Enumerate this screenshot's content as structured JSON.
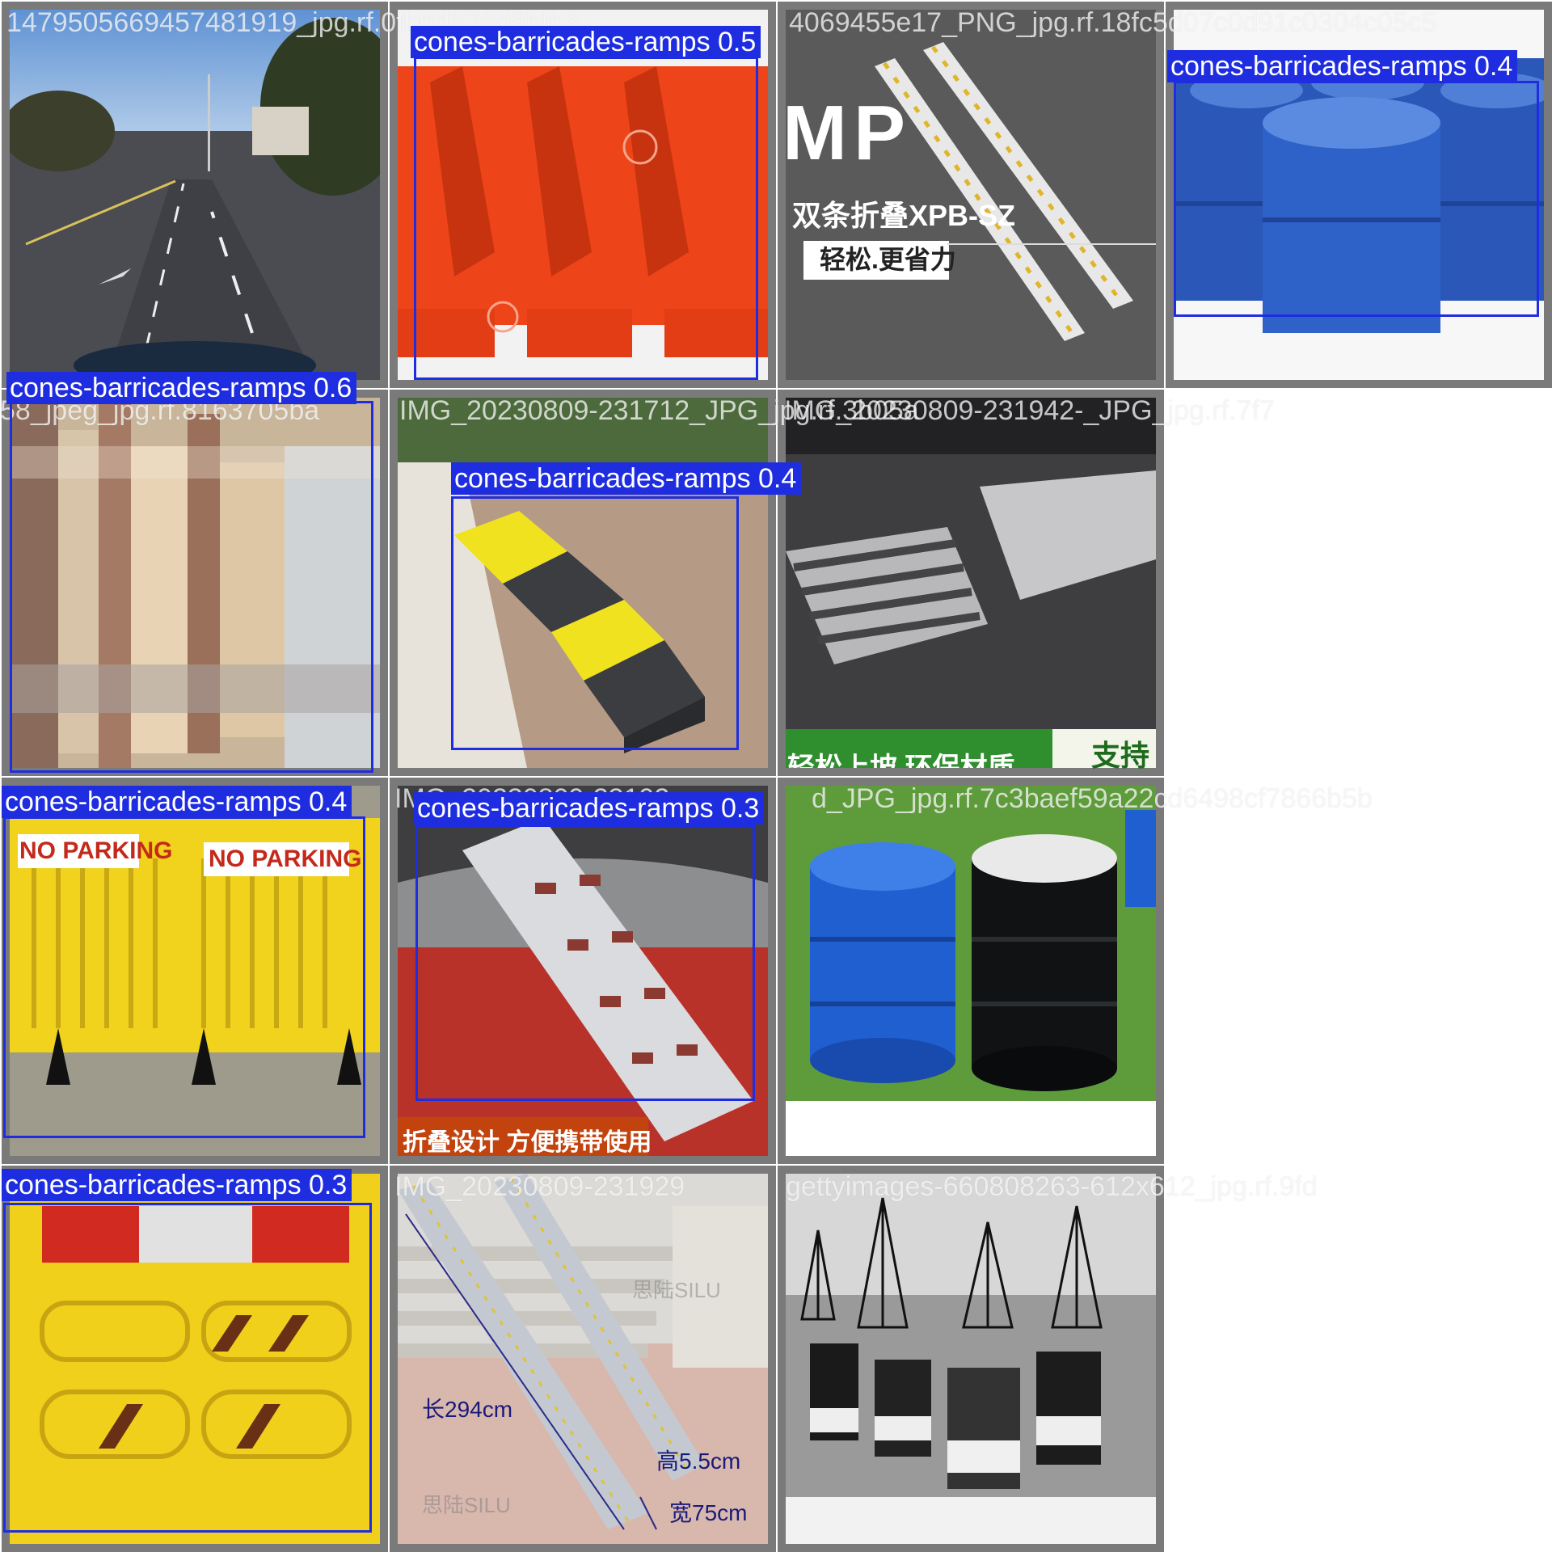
{
  "grid": {
    "label_color": "#1f2de0",
    "tiles": [
      {
        "name": "tile-1",
        "filename": "1479505669457481919_jpg.rf.0fbbd878d8bfb3",
        "detection": null
      },
      {
        "name": "tile-2",
        "filename": "9fbedb78d8b3ea27603c",
        "detection": {
          "label": "cones-barricades-ramps 0.5"
        }
      },
      {
        "name": "tile-3",
        "filename": "4069455e17_PNG_jpg.rf.18fc5d07c0d91c0304c05c5",
        "detection": null,
        "texts": {
          "mp": "MP",
          "model": "双条折叠XPB-SZ",
          "slogan": "轻松.更省力"
        }
      },
      {
        "name": "tile-4",
        "filename": "1d0d7c4b9a6d6488-612",
        "detection": {
          "label": "cones-barricades-ramps 0.4"
        }
      },
      {
        "name": "tile-5",
        "filename": "58_jpeg_jpg.rf.8163705ba",
        "detection": {
          "label": "cones-barricades-ramps 0.6"
        }
      },
      {
        "name": "tile-6",
        "filename": "IMG_20230809-231712_JPG_jpg.rf.3b05a",
        "detection": {
          "label": "cones-barricades-ramps 0.4"
        }
      },
      {
        "name": "tile-7",
        "filename": "IMG_20230809-231942-_JPG_jpg.rf.7f7",
        "detection": null,
        "texts": {
          "banner": "轻松上坡 环保材质",
          "support": "支持"
        }
      },
      {
        "name": "tile-8",
        "filename": "NO_PARKING",
        "detection": {
          "label": "cones-barricades-ramps 0.4"
        },
        "texts": {
          "sign1": "NO PARKING",
          "sign2": "NO PARKING"
        }
      },
      {
        "name": "tile-9",
        "filename": "IMG_20230809-23192",
        "detection": {
          "label": "cones-barricades-ramps 0.3"
        },
        "texts": {
          "banner": "折叠设计 方便携带使用"
        }
      },
      {
        "name": "tile-10",
        "filename": "d_JPG_jpg.rf.7c3baef59a22cd6498cf7866b5b",
        "detection": null
      },
      {
        "name": "tile-11",
        "filename": "",
        "detection": {
          "label": "cones-barricades-ramps 0.3"
        }
      },
      {
        "name": "tile-12",
        "filename": "IMG_20230809-231929",
        "detection": null,
        "texts": {
          "length": "长294cm",
          "height": "高5.5cm",
          "width": "宽75cm",
          "watermark": "思陆SILU"
        }
      },
      {
        "name": "tile-13",
        "filename": "gettyimages-660808263-612x612_jpg.rf.9fd",
        "detection": null
      }
    ]
  }
}
